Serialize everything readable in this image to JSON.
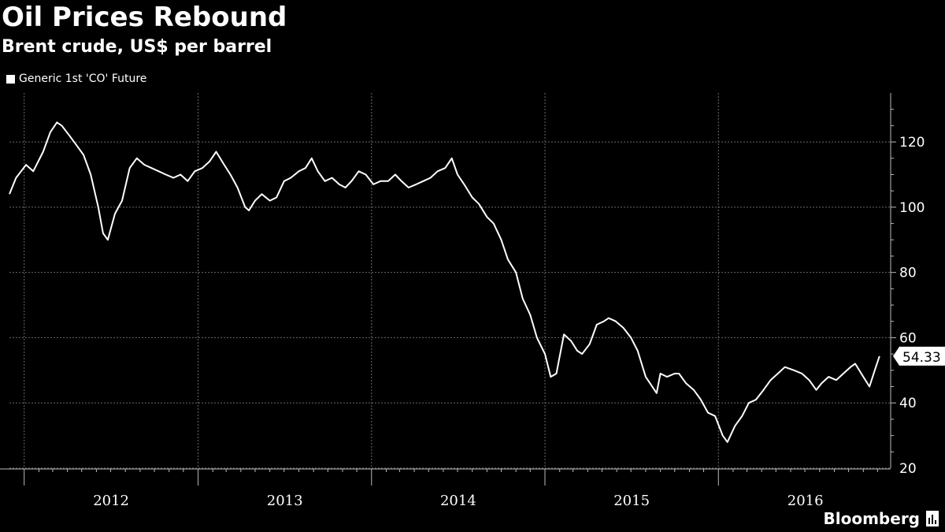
{
  "chart_data": {
    "type": "line",
    "title": "Oil Prices Rebound",
    "subtitle": "Brent crude, US$ per barrel",
    "xlabel": "",
    "ylabel": "",
    "ylim": [
      20,
      135
    ],
    "yticks": [
      20,
      40,
      60,
      80,
      100,
      120
    ],
    "year_labels": [
      "2012",
      "2013",
      "2014",
      "2015",
      "2016"
    ],
    "grid": true,
    "legend_position": "top-left",
    "series": [
      {
        "name": "Generic 1st 'CO' Future",
        "color": "#ffffff",
        "x": [
          "2011-12-01",
          "2011-12-15",
          "2012-01-05",
          "2012-01-20",
          "2012-02-10",
          "2012-02-25",
          "2012-03-10",
          "2012-03-20",
          "2012-04-05",
          "2012-04-20",
          "2012-05-05",
          "2012-05-20",
          "2012-06-05",
          "2012-06-15",
          "2012-06-25",
          "2012-07-10",
          "2012-07-25",
          "2012-08-10",
          "2012-08-25",
          "2012-09-10",
          "2012-09-25",
          "2012-10-10",
          "2012-10-25",
          "2012-11-10",
          "2012-11-25",
          "2012-12-10",
          "2012-12-25",
          "2013-01-10",
          "2013-01-25",
          "2013-02-08",
          "2013-02-25",
          "2013-03-10",
          "2013-03-25",
          "2013-04-10",
          "2013-04-18",
          "2013-05-01",
          "2013-05-15",
          "2013-06-01",
          "2013-06-15",
          "2013-07-01",
          "2013-07-15",
          "2013-08-01",
          "2013-08-15",
          "2013-08-28",
          "2013-09-10",
          "2013-09-25",
          "2013-10-10",
          "2013-10-25",
          "2013-11-07",
          "2013-11-20",
          "2013-12-05",
          "2013-12-20",
          "2014-01-05",
          "2014-01-20",
          "2014-02-05",
          "2014-02-20",
          "2014-03-05",
          "2014-03-20",
          "2014-04-05",
          "2014-04-20",
          "2014-05-05",
          "2014-05-20",
          "2014-06-05",
          "2014-06-19",
          "2014-07-01",
          "2014-07-15",
          "2014-08-01",
          "2014-08-15",
          "2014-09-01",
          "2014-09-15",
          "2014-10-01",
          "2014-10-15",
          "2014-11-01",
          "2014-11-15",
          "2014-12-01",
          "2014-12-15",
          "2015-01-01",
          "2015-01-13",
          "2015-01-25",
          "2015-02-10",
          "2015-02-25",
          "2015-03-10",
          "2015-03-20",
          "2015-04-05",
          "2015-04-20",
          "2015-05-05",
          "2015-05-15",
          "2015-05-30",
          "2015-06-15",
          "2015-07-01",
          "2015-07-15",
          "2015-08-01",
          "2015-08-24",
          "2015-09-01",
          "2015-09-15",
          "2015-10-01",
          "2015-10-10",
          "2015-10-25",
          "2015-11-10",
          "2015-11-25",
          "2015-12-10",
          "2015-12-25",
          "2016-01-10",
          "2016-01-20",
          "2016-02-05",
          "2016-02-20",
          "2016-03-05",
          "2016-03-20",
          "2016-04-05",
          "2016-04-20",
          "2016-05-05",
          "2016-05-20",
          "2016-06-08",
          "2016-06-25",
          "2016-07-10",
          "2016-07-25",
          "2016-08-05",
          "2016-08-20",
          "2016-09-05",
          "2016-09-20",
          "2016-10-05",
          "2016-10-15",
          "2016-11-01",
          "2016-11-14",
          "2016-11-25",
          "2016-12-05"
        ],
        "values": [
          104,
          109,
          113,
          111,
          117,
          123,
          126,
          125,
          122,
          119,
          116,
          110,
          100,
          92,
          90,
          98,
          102,
          112,
          115,
          113,
          112,
          111,
          110,
          109,
          110,
          108,
          111,
          112,
          114,
          117,
          113,
          110,
          106,
          100,
          99,
          102,
          104,
          102,
          103,
          108,
          109,
          111,
          112,
          115,
          111,
          108,
          109,
          107,
          106,
          108,
          111,
          110,
          107,
          108,
          108,
          110,
          108,
          106,
          107,
          108,
          109,
          111,
          112,
          115,
          110,
          107,
          103,
          101,
          97,
          95,
          90,
          84,
          80,
          72,
          67,
          60,
          55,
          48,
          49,
          61,
          59,
          56,
          55,
          58,
          64,
          65,
          66,
          65,
          63,
          60,
          56,
          48,
          43,
          49,
          48,
          49,
          49,
          46,
          44,
          41,
          37,
          36,
          30,
          28,
          33,
          36,
          40,
          41,
          44,
          47,
          49,
          51,
          50,
          49,
          47,
          44,
          46,
          48,
          47,
          49,
          51,
          52,
          48,
          45,
          50,
          54.33
        ]
      }
    ],
    "last_value_label": "54.33"
  },
  "branding": {
    "logo_text": "Bloomberg"
  }
}
